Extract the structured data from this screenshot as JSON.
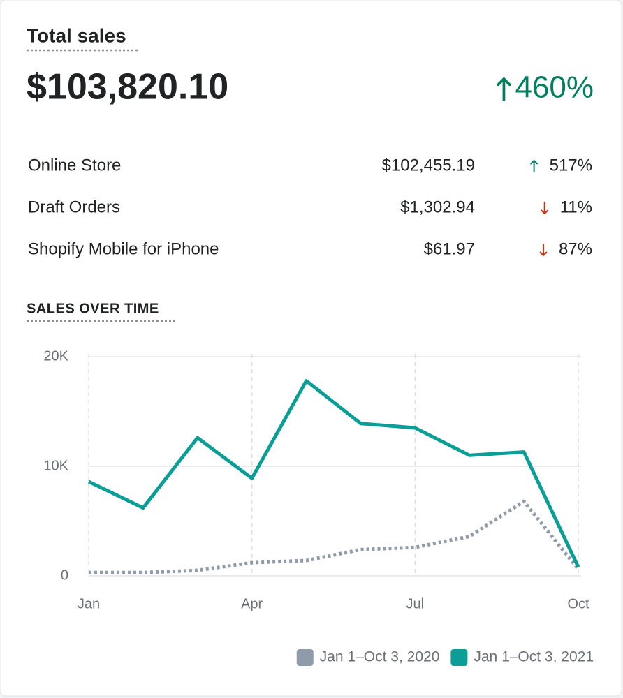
{
  "header": {
    "title": "Total sales",
    "total": "$103,820.10",
    "change": "460%",
    "trend": "up"
  },
  "channels": [
    {
      "name": "Online Store",
      "amount": "$102,455.19",
      "change": "517%",
      "trend": "up"
    },
    {
      "name": "Draft Orders",
      "amount": "$1,302.94",
      "change": "11%",
      "trend": "down"
    },
    {
      "name": "Shopify Mobile for iPhone",
      "amount": "$61.97",
      "change": "87%",
      "trend": "down"
    }
  ],
  "chart_data": {
    "type": "line",
    "title": "SALES OVER TIME",
    "categories": [
      "Jan",
      null,
      null,
      "Apr",
      null,
      null,
      "Jul",
      null,
      null,
      "Oct"
    ],
    "series": [
      {
        "name": "Jan 1–Oct 3, 2020",
        "color": "#8f9ba8",
        "dashed": true,
        "values": [
          300,
          300,
          500,
          1200,
          1400,
          2400,
          2600,
          3600,
          6800,
          600
        ]
      },
      {
        "name": "Jan 1–Oct 3, 2021",
        "color": "#0a9e97",
        "dashed": false,
        "values": [
          8600,
          6200,
          12600,
          8900,
          17800,
          13900,
          13500,
          11000,
          11300,
          800
        ]
      }
    ],
    "ylim": [
      0,
      20000
    ],
    "yticks": [
      0,
      {
        "value": 10000,
        "label": "10K"
      },
      {
        "value": 20000,
        "label": "20K"
      }
    ],
    "grid": true,
    "legend": "bottom-right"
  }
}
